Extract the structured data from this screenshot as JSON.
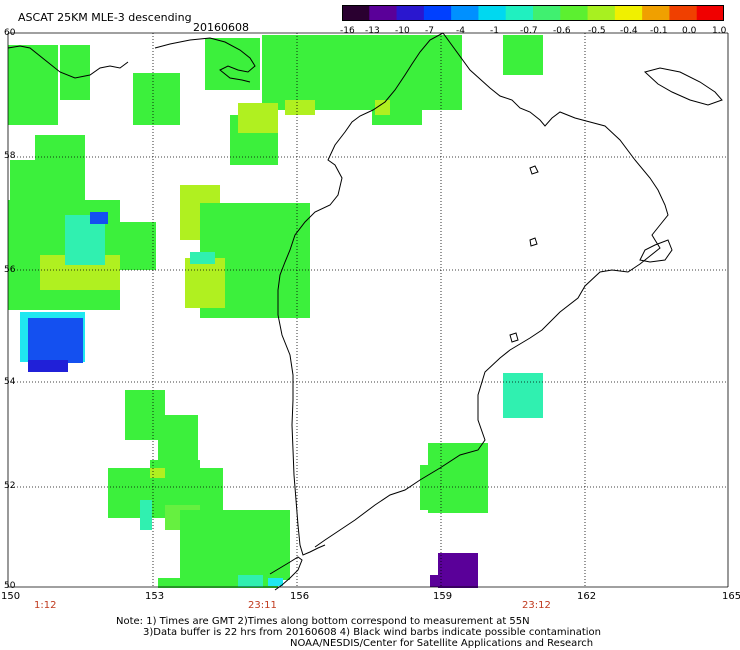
{
  "header": {
    "title": "ASCAT 25KM MLE-3 descending",
    "date": "20160608"
  },
  "colorbar": {
    "tick_labels": [
      "-16",
      "-13",
      "-10",
      "-7",
      "-4",
      "-1",
      "-0.7",
      "-0.6",
      "-0.5",
      "-0.4",
      "-0.1",
      "0.0",
      "1.0"
    ],
    "colors": [
      "#2a0030",
      "#5a0099",
      "#2a17cf",
      "#0040ff",
      "#0090ff",
      "#00d8f0",
      "#20f0c0",
      "#40f070",
      "#5cf030",
      "#a8f020",
      "#f0f000",
      "#f0a000",
      "#f04000",
      "#f00000"
    ]
  },
  "axes": {
    "lat_labels": [
      "60",
      "58",
      "56",
      "54",
      "52",
      "50"
    ],
    "lon_labels": [
      "150",
      "153",
      "156",
      "159",
      "162",
      "165"
    ],
    "time_labels": [
      "1:12",
      "23:11",
      "23:12"
    ]
  },
  "notes": {
    "line1": "Note: 1) Times are GMT 2)Times along bottom correspond to measurement at 55N",
    "line2": "3)Data buffer is 22 hrs from 20160608 4) Black wind barbs indicate possible contamination",
    "line3": "NOAA/NESDIS/Center for Satellite Applications and Research"
  },
  "palette": {
    "green": "#3cf03c",
    "lightgreen": "#66f040",
    "yellowgreen": "#b0f020",
    "aqua": "#30f0b0",
    "cyan": "#20e8f0",
    "blue": "#1450f0",
    "deepblue": "#2020d8",
    "purple": "#5a0099"
  }
}
